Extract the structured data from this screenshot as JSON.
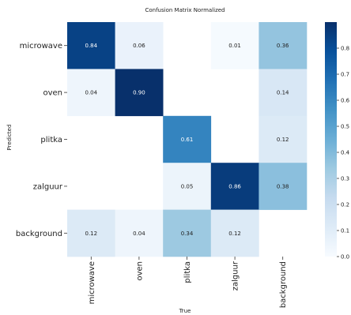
{
  "chart_data": {
    "type": "heatmap",
    "title": "Confusion Matrix Normalized",
    "xlabel": "True",
    "ylabel": "Predicted",
    "x_categories": [
      "microwave",
      "oven",
      "plitka",
      "zalguur",
      "background"
    ],
    "y_categories": [
      "microwave",
      "oven",
      "plitka",
      "zalguur",
      "background"
    ],
    "values": [
      [
        0.84,
        0.06,
        null,
        0.01,
        0.36
      ],
      [
        0.04,
        0.9,
        null,
        null,
        0.14
      ],
      [
        null,
        null,
        0.61,
        null,
        0.12
      ],
      [
        null,
        null,
        0.05,
        0.86,
        0.38
      ],
      [
        0.12,
        0.04,
        0.34,
        0.12,
        null
      ]
    ],
    "cell_labels": [
      [
        "0.84",
        "0.06",
        "",
        "0.01",
        "0.36"
      ],
      [
        "0.04",
        "0.90",
        "",
        "",
        "0.14"
      ],
      [
        "",
        "",
        "0.61",
        "",
        "0.12"
      ],
      [
        "",
        "",
        "0.05",
        "0.86",
        "0.38"
      ],
      [
        "0.12",
        "0.04",
        "0.34",
        "0.12",
        ""
      ]
    ],
    "colorbar": {
      "range": [
        0,
        0.9
      ],
      "ticks": [
        0.0,
        0.1,
        0.2,
        0.3,
        0.4,
        0.5,
        0.6,
        0.7,
        0.8
      ],
      "tick_labels": [
        "0.0",
        "0.1",
        "0.2",
        "0.3",
        "0.4",
        "0.5",
        "0.6",
        "0.7",
        "0.8"
      ]
    },
    "colormap": "Blues",
    "grid": false
  }
}
